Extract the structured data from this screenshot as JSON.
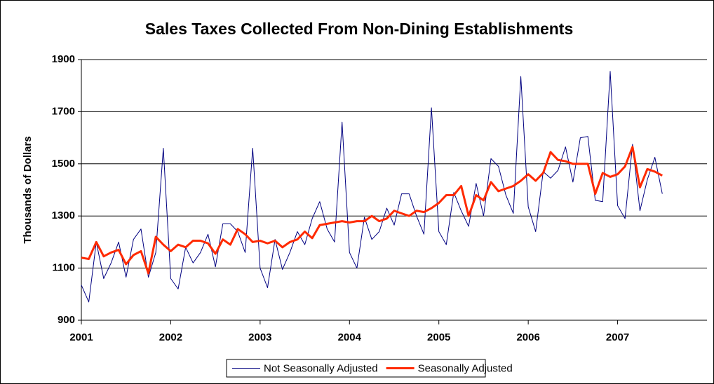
{
  "chart_data": {
    "type": "line",
    "title": "Sales Taxes Collected From Non-Dining Establishments",
    "y_label": "Thousands of Dollars",
    "x": [
      2001,
      2001.083,
      2001.167,
      2001.25,
      2001.333,
      2001.417,
      2001.5,
      2001.583,
      2001.667,
      2001.75,
      2001.833,
      2001.917,
      2002,
      2002.083,
      2002.167,
      2002.25,
      2002.333,
      2002.417,
      2002.5,
      2002.583,
      2002.667,
      2002.75,
      2002.833,
      2002.917,
      2003,
      2003.083,
      2003.167,
      2003.25,
      2003.333,
      2003.417,
      2003.5,
      2003.583,
      2003.667,
      2003.75,
      2003.833,
      2003.917,
      2004,
      2004.083,
      2004.167,
      2004.25,
      2004.333,
      2004.417,
      2004.5,
      2004.583,
      2004.667,
      2004.75,
      2004.833,
      2004.917,
      2005,
      2005.083,
      2005.167,
      2005.25,
      2005.333,
      2005.417,
      2005.5,
      2005.583,
      2005.667,
      2005.75,
      2005.833,
      2005.917,
      2006,
      2006.083,
      2006.167,
      2006.25,
      2006.333,
      2006.417,
      2006.5,
      2006.583,
      2006.667,
      2006.75,
      2006.833,
      2006.917,
      2007,
      2007.083,
      2007.167,
      2007.25,
      2007.333,
      2007.417,
      2007.5
    ],
    "series": [
      {
        "name": "Not Seasonally Adjusted",
        "color": "#000080",
        "width": 1,
        "values": [
          1035,
          970,
          1200,
          1060,
          1120,
          1200,
          1065,
          1210,
          1250,
          1065,
          1160,
          1560,
          1060,
          1020,
          1180,
          1120,
          1160,
          1230,
          1105,
          1270,
          1270,
          1240,
          1160,
          1560,
          1100,
          1025,
          1210,
          1095,
          1160,
          1240,
          1190,
          1290,
          1355,
          1250,
          1200,
          1660,
          1160,
          1100,
          1295,
          1210,
          1240,
          1330,
          1265,
          1385,
          1385,
          1300,
          1230,
          1715,
          1240,
          1190,
          1390,
          1320,
          1260,
          1425,
          1300,
          1520,
          1490,
          1380,
          1310,
          1835,
          1335,
          1240,
          1470,
          1445,
          1475,
          1565,
          1430,
          1600,
          1605,
          1360,
          1355,
          1855,
          1340,
          1290,
          1575,
          1320,
          1440,
          1525,
          1385
        ]
      },
      {
        "name": "Seasonally Adjusted",
        "color": "#ff2a00",
        "width": 3,
        "values": [
          1140,
          1135,
          1200,
          1145,
          1160,
          1170,
          1115,
          1150,
          1165,
          1080,
          1220,
          1190,
          1165,
          1190,
          1180,
          1205,
          1205,
          1195,
          1155,
          1210,
          1190,
          1250,
          1230,
          1200,
          1205,
          1195,
          1205,
          1180,
          1200,
          1210,
          1240,
          1215,
          1265,
          1270,
          1275,
          1280,
          1275,
          1280,
          1280,
          1300,
          1280,
          1290,
          1320,
          1310,
          1300,
          1320,
          1315,
          1330,
          1350,
          1380,
          1380,
          1415,
          1300,
          1380,
          1360,
          1430,
          1395,
          1405,
          1415,
          1435,
          1460,
          1435,
          1465,
          1545,
          1515,
          1510,
          1500,
          1500,
          1500,
          1385,
          1465,
          1450,
          1460,
          1490,
          1565,
          1410,
          1480,
          1470,
          1455
        ]
      }
    ],
    "xlim": [
      2001,
      2008
    ],
    "xticks": [
      2001,
      2002,
      2003,
      2004,
      2005,
      2006,
      2007
    ],
    "ylim": [
      900,
      1900
    ],
    "yticks": [
      900,
      1100,
      1300,
      1500,
      1700,
      1900
    ],
    "grid": true,
    "legend": "bottom"
  }
}
